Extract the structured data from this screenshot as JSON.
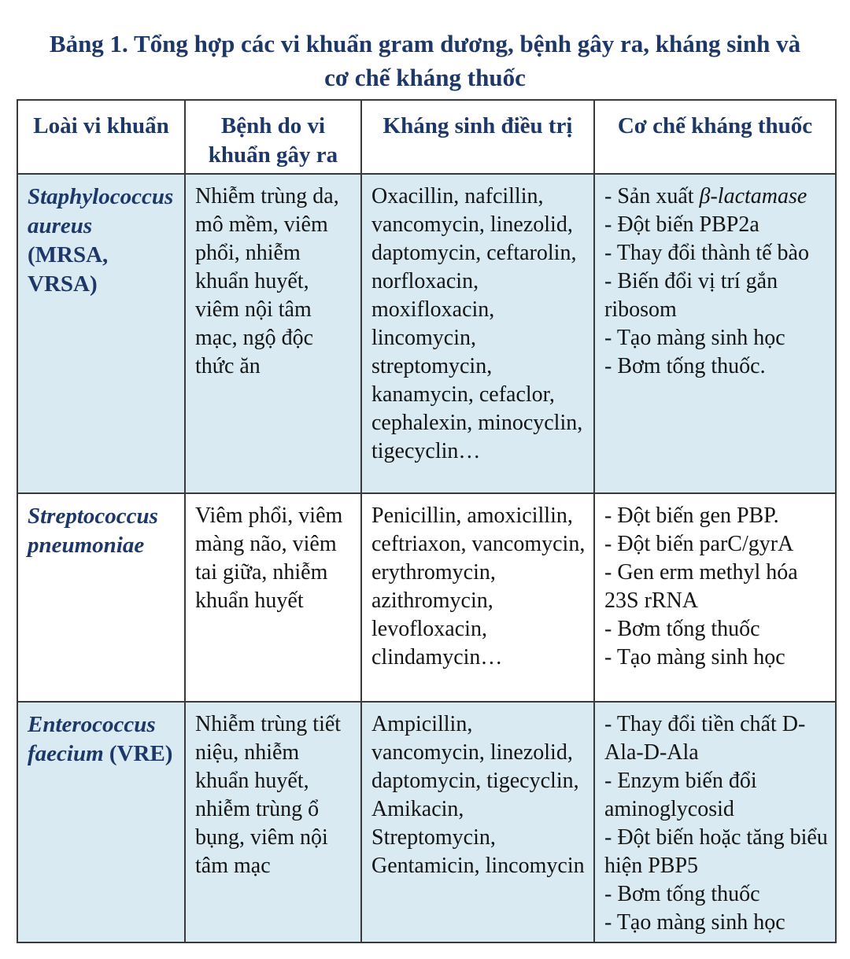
{
  "title": {
    "line1": "Bảng 1. Tổng hợp các vi khuẩn gram dương, bệnh gây ra, kháng sinh và",
    "line2": "cơ chế kháng thuốc"
  },
  "colors": {
    "heading_navy": "#1c3768",
    "row_alt_background": "#d9eaf2",
    "row_background": "#ffffff",
    "border": "#3a3a3a",
    "body_text": "#141414"
  },
  "table": {
    "headers": [
      "Loài vi khuẩn",
      "Bệnh do vi khuẩn gây ra",
      "Kháng sinh điều trị",
      "Cơ chế kháng thuốc"
    ],
    "rows": [
      {
        "species": [
          {
            "text": "Staphylococcus aureus",
            "italic": true
          },
          {
            "text": " (MRSA, VRSA)"
          }
        ],
        "diseases": "Nhiễm trùng da, mô mềm, viêm phổi, nhiễm khuẩn huyết, viêm nội tâm mạc, ngộ độc thức ăn",
        "antibiotics": "Oxacillin, nafcillin, vancomycin, linezolid, daptomycin, ceftarolin, norfloxacin, moxifloxacin, lincomycin, streptomycin, kanamycin, cefaclor, cephalexin, minocyclin, tigecyclin…",
        "mechanisms": [
          [
            {
              "text": "- Sản xuất "
            },
            {
              "text": "β-lactamase",
              "italic": true
            }
          ],
          [
            {
              "text": "- Đột biến PBP2a"
            }
          ],
          [
            {
              "text": "- Thay đổi thành tế bào"
            }
          ],
          [
            {
              "text": "- Biến đổi vị trí gắn ribosom"
            }
          ],
          [
            {
              "text": "- Tạo màng sinh học"
            }
          ],
          [
            {
              "text": "- Bơm tống thuốc."
            }
          ]
        ]
      },
      {
        "species": [
          {
            "text": "Streptococcus pneumoniae",
            "italic": true
          }
        ],
        "diseases": "Viêm phổi, viêm màng não, viêm tai giữa, nhiễm khuẩn huyết",
        "antibiotics": "Penicillin, amoxicillin, ceftriaxon, vancomycin, erythromycin, azithromycin, levofloxacin, clindamycin…",
        "mechanisms": [
          [
            {
              "text": "- Đột biến gen PBP."
            }
          ],
          [
            {
              "text": "- Đột biến parC/gyrA"
            }
          ],
          [
            {
              "text": "- Gen erm methyl hóa 23S rRNA"
            }
          ],
          [
            {
              "text": "- Bơm tống thuốc"
            }
          ],
          [
            {
              "text": "- Tạo màng sinh học"
            }
          ]
        ]
      },
      {
        "species": [
          {
            "text": "Enterococcus faecium",
            "italic": true
          },
          {
            "text": " (VRE)"
          }
        ],
        "diseases": "Nhiễm trùng tiết niệu, nhiễm khuẩn huyết, nhiễm trùng ổ bụng, viêm nội tâm mạc",
        "antibiotics": "Ampicillin, vancomycin, linezolid, daptomycin, tigecyclin, Amikacin, Streptomycin, Gentamicin, lincomycin",
        "mechanisms": [
          [
            {
              "text": "- Thay đổi tiền chất D-Ala-D-Ala"
            }
          ],
          [
            {
              "text": "- Enzym biến đổi aminoglycosid"
            }
          ],
          [
            {
              "text": "- Đột biến hoặc tăng biểu hiện PBP5"
            }
          ],
          [
            {
              "text": "- Bơm tống thuốc"
            }
          ],
          [
            {
              "text": "- Tạo màng sinh học"
            }
          ]
        ]
      }
    ]
  }
}
